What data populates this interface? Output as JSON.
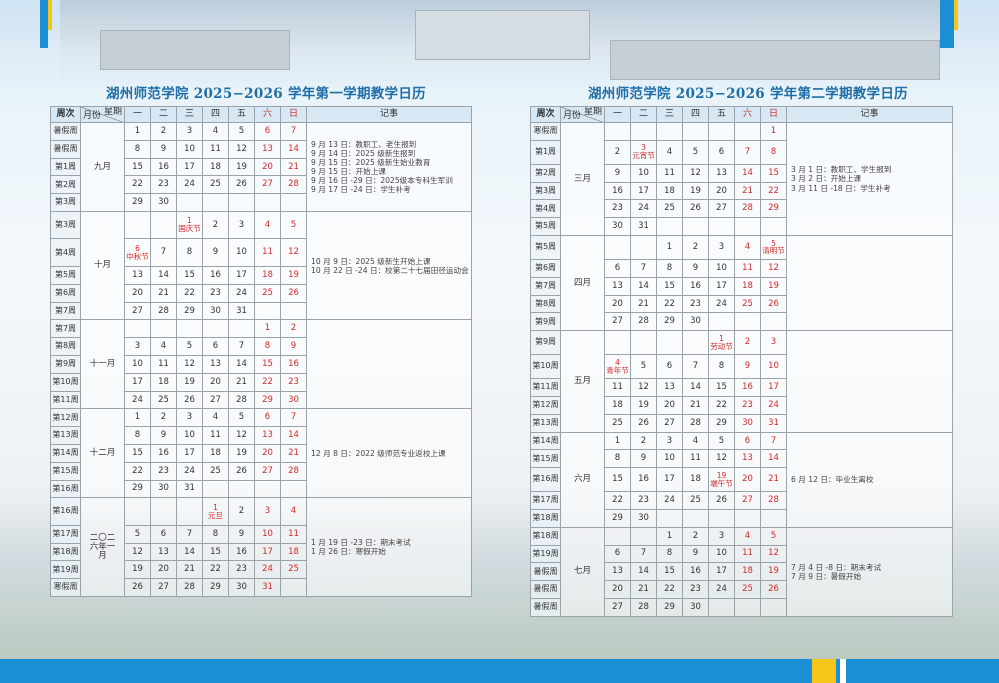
{
  "header_labels": {
    "week": "周次",
    "weekday": "星期",
    "month": "月份",
    "days": [
      "一",
      "二",
      "三",
      "四",
      "五",
      "六",
      "日"
    ],
    "notes": "记事"
  },
  "colors": {
    "accent": "#1b8fd6",
    "holiday": "#cf2a2a",
    "header": "#d7e7f4",
    "title": "#1f6ea8"
  },
  "semesters": [
    {
      "title": "湖州师范学院 2025−2026 学年第一学期教学日历",
      "months": [
        {
          "name": "九月",
          "rows": [
            {
              "week": "暑假周",
              "days": [
                "1",
                "2",
                "3",
                "4",
                "5",
                "6",
                "7"
              ]
            },
            {
              "week": "暑假周",
              "days": [
                "8",
                "9",
                "10",
                "11",
                "12",
                "13",
                "14"
              ]
            },
            {
              "week": "第1周",
              "days": [
                "15",
                "16",
                "17",
                "18",
                "19",
                "20",
                "21"
              ]
            },
            {
              "week": "第2周",
              "days": [
                "22",
                "23",
                "24",
                "25",
                "26",
                "27",
                "28"
              ]
            },
            {
              "week": "第3周",
              "days": [
                "29",
                "30",
                "",
                "",
                "",
                "",
                ""
              ]
            }
          ],
          "notes": [
            "9 月 13 日：教职工、老生报到",
            "9 月 14 日：2025 级新生报到",
            "9 月 15 日：2025 级新生始业教育",
            "9 月 15 日：开始上课",
            "9 月 16 日 -29 日：2025级本专科生军训",
            "9 月 17 日 -24 日：学生补考"
          ]
        },
        {
          "name": "十月",
          "rows": [
            {
              "week": "第3周",
              "days": [
                "",
                "",
                {
                  "day": "1",
                  "holiday": "国庆节"
                },
                "2",
                "3",
                "4",
                "5"
              ]
            },
            {
              "week": "第4周",
              "days": [
                {
                  "day": "6",
                  "holiday": "中秋节"
                },
                "7",
                "8",
                "9",
                "10",
                "11",
                "12"
              ]
            },
            {
              "week": "第5周",
              "days": [
                "13",
                "14",
                "15",
                "16",
                "17",
                "18",
                "19"
              ]
            },
            {
              "week": "第6周",
              "days": [
                "20",
                "21",
                "22",
                "23",
                "24",
                "25",
                "26"
              ]
            },
            {
              "week": "第7周",
              "days": [
                "27",
                "28",
                "29",
                "30",
                "31",
                "",
                ""
              ]
            }
          ],
          "notes": [
            "10 月 9 日：2025 级新生开始上课",
            "10 月 22 日 -24 日：校第二十七届田径运动会"
          ]
        },
        {
          "name": "十一月",
          "rows": [
            {
              "week": "第7周",
              "days": [
                "",
                "",
                "",
                "",
                "",
                "1",
                "2"
              ]
            },
            {
              "week": "第8周",
              "days": [
                "3",
                "4",
                "5",
                "6",
                "7",
                "8",
                "9"
              ]
            },
            {
              "week": "第9周",
              "days": [
                "10",
                "11",
                "12",
                "13",
                "14",
                "15",
                "16"
              ]
            },
            {
              "week": "第10周",
              "days": [
                "17",
                "18",
                "19",
                "20",
                "21",
                "22",
                "23"
              ]
            },
            {
              "week": "第11周",
              "days": [
                "24",
                "25",
                "26",
                "27",
                "28",
                "29",
                "30"
              ]
            }
          ],
          "notes": []
        },
        {
          "name": "十二月",
          "rows": [
            {
              "week": "第12周",
              "days": [
                "1",
                "2",
                "3",
                "4",
                "5",
                "6",
                "7"
              ]
            },
            {
              "week": "第13周",
              "days": [
                "8",
                "9",
                "10",
                "11",
                "12",
                "13",
                "14"
              ]
            },
            {
              "week": "第14周",
              "days": [
                "15",
                "16",
                "17",
                "18",
                "19",
                "20",
                "21"
              ]
            },
            {
              "week": "第15周",
              "days": [
                "22",
                "23",
                "24",
                "25",
                "26",
                "27",
                "28"
              ]
            },
            {
              "week": "第16周",
              "days": [
                "29",
                "30",
                "31",
                "",
                "",
                "",
                ""
              ]
            }
          ],
          "notes": [
            "12 月 8 日：2022 级师范专业返校上课"
          ]
        },
        {
          "name": "二〇二六年一月",
          "rows": [
            {
              "week": "第16周",
              "days": [
                "",
                "",
                "",
                {
                  "day": "1",
                  "holiday": "元旦"
                },
                "2",
                "3",
                "4"
              ]
            },
            {
              "week": "第17周",
              "days": [
                "5",
                "6",
                "7",
                "8",
                "9",
                "10",
                "11"
              ]
            },
            {
              "week": "第18周",
              "days": [
                "12",
                "13",
                "14",
                "15",
                "16",
                "17",
                "18"
              ]
            },
            {
              "week": "第19周",
              "days": [
                "19",
                "20",
                "21",
                "22",
                "23",
                "24",
                "25"
              ]
            },
            {
              "week": "寒假周",
              "days": [
                "26",
                "27",
                "28",
                "29",
                "30",
                "31",
                ""
              ]
            }
          ],
          "notes": [
            "1 月 19 日 -23 日：期末考试",
            "1 月 26 日：寒假开始"
          ]
        }
      ]
    },
    {
      "title": "湖州师范学院 2025−2026 学年第二学期教学日历",
      "months": [
        {
          "name": "三月",
          "rows": [
            {
              "week": "寒假周",
              "days": [
                "",
                "",
                "",
                "",
                "",
                "",
                "1"
              ]
            },
            {
              "week": "第1周",
              "days": [
                "2",
                {
                  "day": "3",
                  "holiday": "元宵节"
                },
                "4",
                "5",
                "6",
                "7",
                "8"
              ]
            },
            {
              "week": "第2周",
              "days": [
                "9",
                "10",
                "11",
                "12",
                "13",
                "14",
                "15"
              ]
            },
            {
              "week": "第3周",
              "days": [
                "16",
                "17",
                "18",
                "19",
                "20",
                "21",
                "22"
              ]
            },
            {
              "week": "第4周",
              "days": [
                "23",
                "24",
                "25",
                "26",
                "27",
                "28",
                "29"
              ]
            },
            {
              "week": "第5周",
              "days": [
                "30",
                "31",
                "",
                "",
                "",
                "",
                ""
              ]
            }
          ],
          "notes": [
            "3 月 1 日：教职工、学生报到",
            "3 月 2 日：开始上课",
            "3 月 11 日 -18 日：学生补考"
          ]
        },
        {
          "name": "四月",
          "rows": [
            {
              "week": "第5周",
              "days": [
                "",
                "",
                "1",
                "2",
                "3",
                "4",
                {
                  "day": "5",
                  "holiday": "清明节"
                }
              ]
            },
            {
              "week": "第6周",
              "days": [
                "6",
                "7",
                "8",
                "9",
                "10",
                "11",
                "12"
              ]
            },
            {
              "week": "第7周",
              "days": [
                "13",
                "14",
                "15",
                "16",
                "17",
                "18",
                "19"
              ]
            },
            {
              "week": "第8周",
              "days": [
                "20",
                "21",
                "22",
                "23",
                "24",
                "25",
                "26"
              ]
            },
            {
              "week": "第9周",
              "days": [
                "27",
                "28",
                "29",
                "30",
                "",
                "",
                ""
              ]
            }
          ],
          "notes": []
        },
        {
          "name": "五月",
          "rows": [
            {
              "week": "第9周",
              "days": [
                "",
                "",
                "",
                "",
                {
                  "day": "1",
                  "holiday": "劳动节"
                },
                "2",
                "3"
              ]
            },
            {
              "week": "第10周",
              "days": [
                {
                  "day": "4",
                  "holiday": "青年节"
                },
                "5",
                "6",
                "7",
                "8",
                "9",
                "10"
              ]
            },
            {
              "week": "第11周",
              "days": [
                "11",
                "12",
                "13",
                "14",
                "15",
                "16",
                "17"
              ]
            },
            {
              "week": "第12周",
              "days": [
                "18",
                "19",
                "20",
                "21",
                "22",
                "23",
                "24"
              ]
            },
            {
              "week": "第13周",
              "days": [
                "25",
                "26",
                "27",
                "28",
                "29",
                "30",
                "31"
              ]
            }
          ],
          "notes": []
        },
        {
          "name": "六月",
          "rows": [
            {
              "week": "第14周",
              "days": [
                "1",
                "2",
                "3",
                "4",
                "5",
                "6",
                "7"
              ]
            },
            {
              "week": "第15周",
              "days": [
                "8",
                "9",
                "10",
                "11",
                "12",
                "13",
                "14"
              ]
            },
            {
              "week": "第16周",
              "days": [
                "15",
                "16",
                "17",
                "18",
                {
                  "day": "19",
                  "holiday": "端午节"
                },
                "20",
                "21"
              ]
            },
            {
              "week": "第17周",
              "days": [
                "22",
                "23",
                "24",
                "25",
                "26",
                "27",
                "28"
              ]
            },
            {
              "week": "第18周",
              "days": [
                "29",
                "30",
                "",
                "",
                "",
                "",
                ""
              ]
            }
          ],
          "notes": [
            "6 月 12 日：毕业生离校"
          ]
        },
        {
          "name": "七月",
          "rows": [
            {
              "week": "第18周",
              "days": [
                "",
                "",
                "1",
                "2",
                "3",
                "4",
                "5"
              ]
            },
            {
              "week": "第19周",
              "days": [
                "6",
                "7",
                "8",
                "9",
                "10",
                "11",
                "12"
              ]
            },
            {
              "week": "暑假周",
              "days": [
                "13",
                "14",
                "15",
                "16",
                "17",
                "18",
                "19"
              ]
            },
            {
              "week": "暑假周",
              "days": [
                "20",
                "21",
                "22",
                "23",
                "24",
                "25",
                "26"
              ]
            },
            {
              "week": "暑假周",
              "days": [
                "27",
                "28",
                "29",
                "30",
                "",
                "",
                ""
              ]
            }
          ],
          "notes": [
            "7 月 4 日 -8 日：期末考试",
            "7 月 9 日：暑假开始"
          ]
        }
      ]
    }
  ]
}
